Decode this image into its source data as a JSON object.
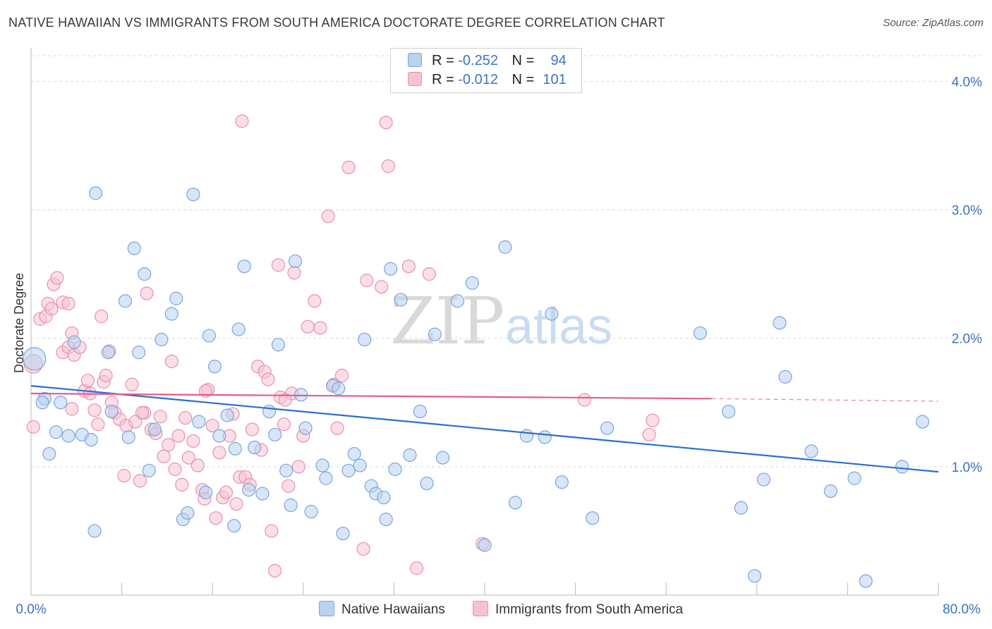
{
  "header": {
    "title": "NATIVE HAWAIIAN VS IMMIGRANTS FROM SOUTH AMERICA DOCTORATE DEGREE CORRELATION CHART",
    "source": "Source: ZipAtlas.com"
  },
  "legend": {
    "row1": {
      "r_label": "R =",
      "r_value": "-0.252",
      "n_label": "N =",
      "n_value": "94"
    },
    "row2": {
      "r_label": "R =",
      "r_value": "-0.012",
      "n_label": "N =",
      "n_value": "101"
    }
  },
  "bottom_legend": {
    "series1": "Native Hawaiians",
    "series2": "Immigrants from South America"
  },
  "watermark": {
    "zip": "ZIP",
    "atlas": "atlas"
  },
  "colors": {
    "blue_fill": "#b8d2f0",
    "blue_stroke": "#7aa6dc",
    "blue_line": "#2a6fd1",
    "pink_fill": "#f7c2d2",
    "pink_stroke": "#e891ad",
    "pink_line": "#e35d8d",
    "grid": "#d9d9d9",
    "tick_text": "#3b73c4"
  },
  "chart_data": {
    "type": "scatter",
    "title": "NATIVE HAWAIIAN VS IMMIGRANTS FROM SOUTH AMERICA DOCTORATE DEGREE CORRELATION CHART",
    "ylabel": "Doctorate Degree",
    "xlabel": "",
    "xlim": [
      0,
      80
    ],
    "ylim": [
      0,
      4.2
    ],
    "x_tick_labels": [
      "0.0%",
      "80.0%"
    ],
    "y_ticks": [
      1.0,
      2.0,
      3.0,
      4.0
    ],
    "y_tick_labels": [
      "1.0%",
      "2.0%",
      "3.0%",
      "4.0%"
    ],
    "grid": "horizontal dashed",
    "legend_position": "top-center",
    "series": [
      {
        "name": "Native Hawaiians",
        "color": "#7aa6dc",
        "trend": {
          "x": [
            0,
            80
          ],
          "y": [
            1.63,
            0.96
          ]
        },
        "points": [
          [
            0.3,
            1.84
          ],
          [
            1.2,
            1.53
          ],
          [
            1.0,
            1.5
          ],
          [
            2.2,
            1.27
          ],
          [
            1.6,
            1.1
          ],
          [
            2.6,
            1.5
          ],
          [
            3.3,
            1.24
          ],
          [
            4.5,
            1.25
          ],
          [
            5.3,
            1.21
          ],
          [
            5.7,
            3.13
          ],
          [
            5.6,
            0.5
          ],
          [
            6.8,
            1.89
          ],
          [
            7.1,
            1.43
          ],
          [
            8.3,
            2.29
          ],
          [
            8.6,
            1.23
          ],
          [
            9.1,
            2.7
          ],
          [
            9.5,
            1.89
          ],
          [
            10.0,
            2.5
          ],
          [
            10.4,
            0.97
          ],
          [
            10.9,
            1.29
          ],
          [
            11.5,
            1.99
          ],
          [
            12.4,
            2.19
          ],
          [
            12.8,
            2.31
          ],
          [
            13.4,
            0.59
          ],
          [
            13.8,
            0.64
          ],
          [
            14.3,
            3.12
          ],
          [
            14.8,
            1.35
          ],
          [
            15.4,
            0.8
          ],
          [
            15.7,
            2.02
          ],
          [
            16.2,
            1.78
          ],
          [
            16.6,
            1.24
          ],
          [
            17.3,
            1.4
          ],
          [
            17.9,
            0.54
          ],
          [
            18.3,
            2.07
          ],
          [
            18.8,
            2.56
          ],
          [
            19.2,
            0.82
          ],
          [
            19.7,
            1.15
          ],
          [
            20.4,
            0.79
          ],
          [
            21.0,
            1.43
          ],
          [
            21.5,
            1.25
          ],
          [
            21.8,
            1.95
          ],
          [
            22.5,
            0.97
          ],
          [
            22.9,
            0.7
          ],
          [
            23.3,
            2.6
          ],
          [
            23.8,
            1.56
          ],
          [
            24.2,
            1.3
          ],
          [
            24.7,
            0.65
          ],
          [
            25.7,
            1.01
          ],
          [
            26.0,
            0.91
          ],
          [
            26.6,
            1.63
          ],
          [
            27.1,
            1.61
          ],
          [
            27.5,
            0.48
          ],
          [
            28.0,
            0.97
          ],
          [
            28.5,
            1.1
          ],
          [
            29.0,
            1.01
          ],
          [
            29.4,
            1.99
          ],
          [
            30.0,
            0.85
          ],
          [
            30.4,
            0.79
          ],
          [
            31.1,
            0.76
          ],
          [
            31.3,
            0.59
          ],
          [
            31.7,
            2.54
          ],
          [
            32.1,
            0.98
          ],
          [
            32.6,
            2.3
          ],
          [
            33.4,
            1.09
          ],
          [
            34.3,
            1.43
          ],
          [
            34.9,
            0.87
          ],
          [
            35.6,
            2.03
          ],
          [
            36.3,
            1.07
          ],
          [
            37.6,
            2.29
          ],
          [
            38.9,
            2.43
          ],
          [
            40.0,
            0.39
          ],
          [
            41.8,
            2.71
          ],
          [
            42.7,
            0.72
          ],
          [
            43.7,
            1.24
          ],
          [
            45.3,
            1.23
          ],
          [
            45.9,
            2.19
          ],
          [
            46.8,
            0.88
          ],
          [
            49.5,
            0.6
          ],
          [
            50.8,
            1.3
          ],
          [
            59.0,
            2.04
          ],
          [
            61.5,
            1.43
          ],
          [
            62.6,
            0.68
          ],
          [
            63.8,
            0.15
          ],
          [
            64.6,
            0.9
          ],
          [
            66.0,
            2.12
          ],
          [
            66.5,
            1.7
          ],
          [
            68.8,
            1.12
          ],
          [
            70.5,
            0.81
          ],
          [
            72.6,
            0.91
          ],
          [
            73.6,
            0.11
          ],
          [
            76.8,
            1.0
          ],
          [
            78.6,
            1.35
          ],
          [
            3.8,
            1.97
          ],
          [
            18.0,
            1.14
          ]
        ]
      },
      {
        "name": "Immigrants from South America",
        "color": "#e891ad",
        "trend": {
          "x": [
            0,
            60
          ],
          "y": [
            1.57,
            1.53
          ]
        },
        "trend_dashed": {
          "x": [
            60,
            80
          ],
          "y": [
            1.53,
            1.51
          ]
        },
        "points": [
          [
            0.2,
            1.8
          ],
          [
            0.2,
            1.31
          ],
          [
            0.8,
            2.15
          ],
          [
            1.3,
            2.17
          ],
          [
            1.5,
            2.27
          ],
          [
            1.8,
            2.23
          ],
          [
            2.0,
            2.42
          ],
          [
            2.3,
            2.47
          ],
          [
            2.8,
            2.28
          ],
          [
            2.8,
            1.89
          ],
          [
            3.3,
            1.93
          ],
          [
            3.3,
            2.27
          ],
          [
            3.6,
            2.04
          ],
          [
            3.8,
            1.87
          ],
          [
            4.3,
            1.93
          ],
          [
            4.7,
            1.59
          ],
          [
            5.0,
            1.67
          ],
          [
            5.2,
            1.57
          ],
          [
            5.6,
            1.44
          ],
          [
            5.9,
            1.33
          ],
          [
            6.4,
            1.66
          ],
          [
            6.6,
            1.71
          ],
          [
            6.9,
            1.9
          ],
          [
            7.1,
            1.5
          ],
          [
            7.4,
            1.42
          ],
          [
            7.8,
            1.37
          ],
          [
            8.2,
            0.93
          ],
          [
            8.4,
            1.32
          ],
          [
            8.9,
            1.64
          ],
          [
            9.2,
            1.35
          ],
          [
            9.6,
            0.89
          ],
          [
            10.0,
            1.42
          ],
          [
            10.2,
            2.35
          ],
          [
            10.6,
            1.29
          ],
          [
            11.0,
            1.26
          ],
          [
            11.4,
            1.39
          ],
          [
            11.7,
            1.08
          ],
          [
            12.1,
            1.17
          ],
          [
            12.4,
            1.82
          ],
          [
            12.7,
            0.98
          ],
          [
            13.0,
            1.24
          ],
          [
            13.3,
            0.86
          ],
          [
            13.6,
            1.38
          ],
          [
            13.9,
            1.07
          ],
          [
            14.3,
            1.2
          ],
          [
            14.7,
            1.01
          ],
          [
            15.1,
            0.82
          ],
          [
            15.3,
            0.75
          ],
          [
            15.6,
            1.6
          ],
          [
            16.0,
            1.32
          ],
          [
            16.3,
            0.6
          ],
          [
            16.6,
            1.11
          ],
          [
            16.9,
            0.76
          ],
          [
            17.2,
            0.8
          ],
          [
            17.5,
            1.24
          ],
          [
            17.8,
            1.41
          ],
          [
            18.1,
            0.71
          ],
          [
            18.4,
            0.92
          ],
          [
            18.6,
            3.69
          ],
          [
            18.9,
            0.92
          ],
          [
            19.3,
            0.86
          ],
          [
            19.5,
            1.29
          ],
          [
            20.0,
            1.78
          ],
          [
            20.3,
            1.13
          ],
          [
            20.6,
            1.74
          ],
          [
            20.9,
            1.68
          ],
          [
            21.2,
            0.5
          ],
          [
            21.5,
            0.19
          ],
          [
            21.8,
            2.57
          ],
          [
            22.0,
            1.54
          ],
          [
            22.3,
            1.33
          ],
          [
            22.7,
            0.85
          ],
          [
            23.0,
            1.57
          ],
          [
            23.2,
            2.51
          ],
          [
            23.6,
            1.0
          ],
          [
            24.0,
            1.24
          ],
          [
            24.4,
            2.09
          ],
          [
            25.0,
            2.29
          ],
          [
            25.5,
            2.08
          ],
          [
            26.2,
            2.95
          ],
          [
            26.7,
            1.64
          ],
          [
            27.0,
            1.3
          ],
          [
            27.4,
            1.71
          ],
          [
            28.0,
            3.33
          ],
          [
            29.3,
            0.36
          ],
          [
            29.6,
            2.45
          ],
          [
            30.9,
            2.4
          ],
          [
            31.3,
            3.68
          ],
          [
            31.5,
            3.34
          ],
          [
            33.3,
            2.56
          ],
          [
            34.0,
            0.21
          ],
          [
            35.1,
            2.5
          ],
          [
            39.8,
            0.4
          ],
          [
            48.8,
            1.52
          ],
          [
            54.5,
            1.25
          ],
          [
            54.8,
            1.36
          ],
          [
            6.2,
            2.17
          ],
          [
            3.6,
            1.45
          ],
          [
            9.8,
            1.42
          ],
          [
            15.4,
            1.59
          ],
          [
            22.4,
            1.52
          ]
        ]
      }
    ]
  }
}
